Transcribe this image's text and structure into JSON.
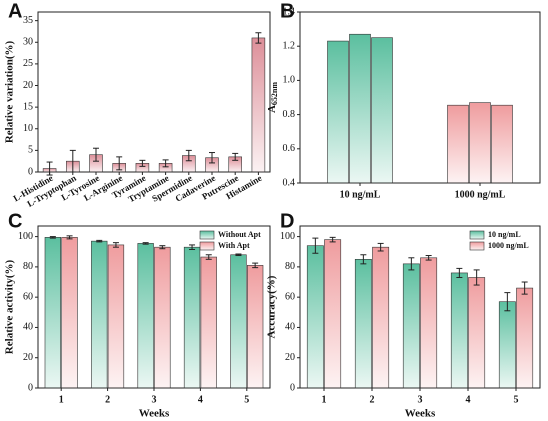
{
  "chart_data": [
    {
      "type": "bar",
      "panel": "A",
      "ylabel": "Relative variation(%)",
      "categories": [
        "L-Histidine",
        "L-Tryptophan",
        "L-Tyrosine",
        "L-Arginine",
        "Tyramine",
        "Tryptamine",
        "Spermidine",
        "Cadaverine",
        "Putrescine",
        "Histamine"
      ],
      "values": [
        0.8,
        2.5,
        4,
        2,
        2,
        2,
        3.8,
        3.3,
        3.5,
        31
      ],
      "errors": [
        1.5,
        2.5,
        1.5,
        1.5,
        0.7,
        0.8,
        1.2,
        1.2,
        0.8,
        1.2
      ],
      "color": "#dd8f99",
      "ylim": [
        0,
        37
      ],
      "yticks": [
        0,
        5,
        10,
        15,
        20,
        25,
        30,
        35
      ]
    },
    {
      "type": "bar",
      "panel": "B",
      "ylabel": {
        "main": "A",
        "sub": "652nm"
      },
      "categories": [
        "10 ng/mL",
        "1000 ng/mL"
      ],
      "series": [
        {
          "color": "#5bbf9f",
          "color2": "#ef9c9e",
          "values": [
            1.23,
            0.855
          ]
        },
        {
          "color": "#5bbf9f",
          "color2": "#ef9c9e",
          "values": [
            1.27,
            0.87
          ]
        },
        {
          "color": "#5bbf9f",
          "color2": "#ef9c9e",
          "values": [
            1.25,
            0.855
          ]
        }
      ],
      "ylim": [
        0.4,
        1.4
      ],
      "yticks": [
        0.4,
        0.6,
        0.8,
        {
          "value": 1.0,
          "label": "1.0"
        },
        1.2,
        1.4
      ]
    },
    {
      "type": "bar",
      "panel": "C",
      "ylabel": "Relative activity(%)",
      "xlabel": "Weeks",
      "categories": [
        "1",
        "2",
        "3",
        "4",
        "5"
      ],
      "series": [
        {
          "name": "Without Apt",
          "color": "#5bbf9f",
          "values": [
            99.5,
            97,
            95.5,
            93,
            88
          ],
          "errors": [
            0.5,
            0.5,
            0.5,
            1.5,
            0.5
          ]
        },
        {
          "name": "With Apt",
          "color": "#ef9c9e",
          "values": [
            99.5,
            94.5,
            93,
            86.5,
            81
          ],
          "errors": [
            1,
            1.5,
            1,
            1.5,
            1.5
          ]
        }
      ],
      "ylim": [
        0,
        107
      ],
      "yticks": [
        0,
        20,
        40,
        60,
        80,
        100
      ],
      "legend": "upper right"
    },
    {
      "type": "bar",
      "panel": "D",
      "ylabel": "Accuracy(%)",
      "xlabel": "Weeks",
      "categories": [
        "1",
        "2",
        "3",
        "4",
        "5"
      ],
      "series": [
        {
          "name": "10 ng/mL",
          "color": "#5bbf9f",
          "values": [
            94,
            85,
            82,
            76,
            57
          ],
          "errors": [
            5,
            3,
            4,
            3,
            6
          ]
        },
        {
          "name": "1000 ng/mL",
          "color": "#ef9c9e",
          "values": [
            98,
            93,
            86,
            73,
            66
          ],
          "errors": [
            1.5,
            2.5,
            1.5,
            5,
            4
          ]
        }
      ],
      "ylim": [
        0,
        107
      ],
      "yticks": [
        0,
        20,
        40,
        60,
        80,
        100
      ],
      "legend": "upper right"
    }
  ]
}
